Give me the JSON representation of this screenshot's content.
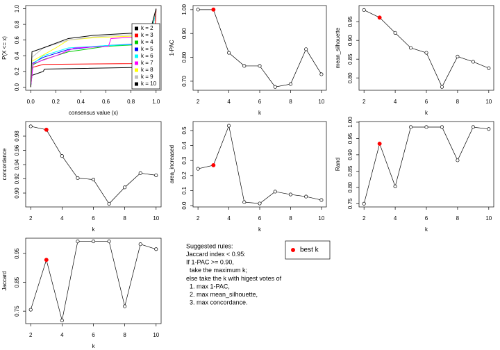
{
  "chart_data": [
    {
      "type": "line",
      "xlabel": "consensus value (x)",
      "ylabel": "P(X <= x)",
      "legend": "bottomright",
      "xlim": [
        -0.04,
        1.04
      ],
      "ylim": [
        -0.04,
        1.04
      ],
      "xticks": [
        {
          "value": 0,
          "label": "0.0"
        },
        {
          "value": 0.2,
          "label": "0.2"
        },
        {
          "value": 0.4,
          "label": "0.4"
        },
        {
          "value": 0.6,
          "label": "0.6"
        },
        {
          "value": 0.8,
          "label": "0.8"
        },
        {
          "value": 1,
          "label": "1.0"
        }
      ],
      "yticks": [
        {
          "value": 0,
          "label": "0.0"
        },
        {
          "value": 0.2,
          "label": "0.2"
        },
        {
          "value": 0.4,
          "label": "0.4"
        },
        {
          "value": 0.6,
          "label": "0.6"
        },
        {
          "value": 0.8,
          "label": "0.8"
        },
        {
          "value": 1,
          "label": "1.0"
        }
      ],
      "series": [
        {
          "name": "k = 2",
          "color": "#000000",
          "x": [
            0,
            0.01,
            0.1,
            0.11,
            0.8,
            0.97,
            0.99,
            1
          ],
          "values": [
            0,
            0.15,
            0.2,
            0.23,
            0.25,
            0.26,
            0.6,
            1
          ]
        },
        {
          "name": "k = 3",
          "color": "#ff0000",
          "x": [
            0,
            0.01,
            0.1,
            0.8,
            0.97,
            0.99,
            1
          ],
          "values": [
            0,
            0.25,
            0.29,
            0.3,
            0.32,
            0.6,
            1
          ]
        },
        {
          "name": "k = 4",
          "color": "#00cd00",
          "x": [
            0,
            0.01,
            0.1,
            0.3,
            0.6,
            0.95,
            1
          ],
          "values": [
            0,
            0.28,
            0.35,
            0.45,
            0.52,
            0.55,
            1
          ]
        },
        {
          "name": "k = 5",
          "color": "#0000ff",
          "x": [
            0,
            0.01,
            0.1,
            0.3,
            0.6,
            0.95,
            1
          ],
          "values": [
            0,
            0.3,
            0.38,
            0.48,
            0.53,
            0.56,
            1
          ]
        },
        {
          "name": "k = 6",
          "color": "#00ffff",
          "x": [
            0,
            0.02,
            0.1,
            0.3,
            0.6,
            0.95,
            1
          ],
          "values": [
            0,
            0.3,
            0.4,
            0.5,
            0.53,
            0.55,
            1
          ]
        },
        {
          "name": "k = 7",
          "color": "#ff00ff",
          "x": [
            0,
            0.02,
            0.2,
            0.35,
            0.62,
            0.64,
            0.95,
            1
          ],
          "values": [
            0,
            0.3,
            0.4,
            0.5,
            0.52,
            0.62,
            0.65,
            1
          ]
        },
        {
          "name": "k = 8",
          "color": "#ffff00",
          "x": [
            0,
            0.01,
            0.2,
            0.3,
            0.5,
            0.95,
            1
          ],
          "values": [
            0,
            0.33,
            0.5,
            0.6,
            0.63,
            0.66,
            1
          ]
        },
        {
          "name": "k = 9",
          "color": "#bebebe",
          "x": [
            0,
            0.01,
            0.1,
            0.3,
            0.5,
            0.95,
            1
          ],
          "values": [
            0,
            0.38,
            0.5,
            0.6,
            0.64,
            0.68,
            1
          ]
        },
        {
          "name": "k = 10",
          "color": "#000000",
          "x": [
            0,
            0.01,
            0.1,
            0.3,
            0.5,
            0.95,
            1
          ],
          "values": [
            0,
            0.45,
            0.5,
            0.62,
            0.66,
            0.7,
            1
          ]
        }
      ]
    },
    {
      "type": "points",
      "xlabel": "k",
      "ylabel": "1-PAC",
      "xlim": [
        1.68,
        10.32
      ],
      "ylim": [
        0.662,
        1.017
      ],
      "xticks": [
        2,
        4,
        6,
        8,
        10
      ],
      "yticks": [
        {
          "value": 0.7,
          "label": "0.70"
        },
        {
          "value": 0.8,
          "label": "0.80"
        },
        {
          "value": 0.9,
          "label": "0.90"
        },
        {
          "value": 1,
          "label": "1.00"
        }
      ],
      "x": [
        2,
        3,
        4,
        5,
        6,
        7,
        8,
        9,
        10
      ],
      "values": [
        1,
        1,
        0.819,
        0.764,
        0.764,
        0.676,
        0.688,
        0.834,
        0.729
      ]
    },
    {
      "type": "points",
      "xlabel": "k",
      "ylabel": "mean_silhouette",
      "xlim": [
        1.68,
        10.32
      ],
      "ylim": [
        0.767,
        0.993
      ],
      "xticks": [
        2,
        4,
        6,
        8,
        10
      ],
      "yticks": [
        {
          "value": 0.8,
          "label": "0.80"
        },
        0.85,
        {
          "value": 0.9,
          "label": "0.90"
        },
        0.95
      ],
      "x": [
        2,
        3,
        4,
        5,
        6,
        7,
        8,
        9,
        10
      ],
      "values": [
        0.981,
        0.961,
        0.92,
        0.88,
        0.867,
        0.776,
        0.857,
        0.843,
        0.826
      ]
    },
    {
      "type": "points",
      "xlabel": "k",
      "ylabel": "concordance",
      "xlim": [
        1.68,
        10.32
      ],
      "ylim": [
        0.8805,
        1.0005
      ],
      "xticks": [
        2,
        4,
        6,
        8,
        10
      ],
      "yticks": [
        {
          "value": 0.9,
          "label": "0.90"
        },
        0.92,
        0.94,
        0.96,
        0.98
      ],
      "x": [
        2,
        3,
        4,
        5,
        6,
        7,
        8,
        9,
        10
      ],
      "values": [
        0.9937,
        0.989,
        0.952,
        0.921,
        0.919,
        0.885,
        0.908,
        0.928,
        0.925
      ]
    },
    {
      "type": "points",
      "xlabel": "k",
      "ylabel": "area_increased",
      "xlim": [
        1.68,
        10.32
      ],
      "ylim": [
        -0.009,
        0.56
      ],
      "xticks": [
        2,
        4,
        6,
        8,
        10
      ],
      "yticks": [
        {
          "value": 0,
          "label": "0.0"
        },
        0.1,
        0.2,
        0.3,
        0.4,
        0.5
      ],
      "x": [
        2,
        3,
        4,
        5,
        6,
        7,
        8,
        9,
        10
      ],
      "values": [
        0.245,
        0.269,
        0.532,
        0.023,
        0.014,
        0.093,
        0.074,
        0.06,
        0.037
      ]
    },
    {
      "type": "points",
      "xlabel": "k",
      "ylabel": "Rand",
      "xlim": [
        1.68,
        10.32
      ],
      "ylim": [
        0.74,
        1.002
      ],
      "xticks": [
        2,
        4,
        6,
        8,
        10
      ],
      "yticks": [
        0.75,
        {
          "value": 0.8,
          "label": "0.80"
        },
        0.85,
        {
          "value": 0.9,
          "label": "0.90"
        },
        0.95,
        {
          "value": 1,
          "label": "1.00"
        }
      ],
      "x": [
        2,
        3,
        4,
        5,
        6,
        7,
        8,
        9,
        10
      ],
      "values": [
        0.75,
        0.934,
        0.803,
        0.985,
        0.985,
        0.985,
        0.883,
        0.985,
        0.979
      ]
    },
    {
      "type": "points",
      "xlabel": "k",
      "ylabel": "Jaccard",
      "xlim": [
        1.68,
        10.32
      ],
      "ylim": [
        0.707,
        1.003
      ],
      "xticks": [
        2,
        4,
        6,
        8,
        10
      ],
      "yticks": [
        0.75,
        0.85,
        0.95
      ],
      "x": [
        2,
        3,
        4,
        5,
        6,
        7,
        8,
        9,
        10
      ],
      "values": [
        0.755,
        0.928,
        0.718,
        0.992,
        0.992,
        0.992,
        0.767,
        0.982,
        0.965
      ]
    }
  ],
  "best_k": {
    "label": "best k",
    "k": 3,
    "color": "#ff0000"
  },
  "rules": [
    "Suggested rules:",
    "Jaccard index < 0.95:",
    "If 1-PAC >= 0.90,",
    "  take the maximum k;",
    "else take the k with higest votes of",
    "  1. max 1-PAC,",
    "  2. max mean_silhouette,",
    "  3. max concordance."
  ]
}
